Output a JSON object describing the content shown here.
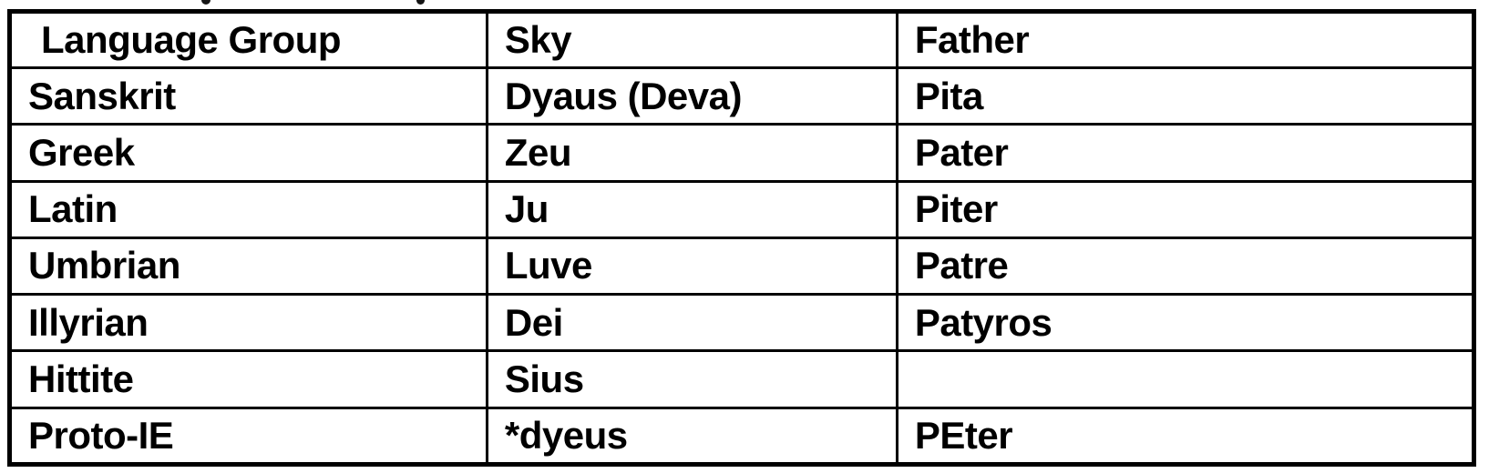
{
  "page": {
    "background_color": "#ffffff",
    "border_color": "#000000",
    "text_color": "#000000"
  },
  "table": {
    "columns": [
      "Language Group",
      "Sky",
      "Father"
    ],
    "rows": [
      [
        "Sanskrit",
        "Dyaus (Deva)",
        "Pita"
      ],
      [
        "Greek",
        "Zeu",
        "Pater"
      ],
      [
        "Latin",
        "Ju",
        "Piter"
      ],
      [
        "Umbrian",
        "Luve",
        "Patre"
      ],
      [
        "Illyrian",
        "Dei",
        "Patyros"
      ],
      [
        "Hittite",
        "Sius",
        ""
      ],
      [
        "Proto-IE",
        "*dyeus",
        "PEter"
      ]
    ]
  }
}
